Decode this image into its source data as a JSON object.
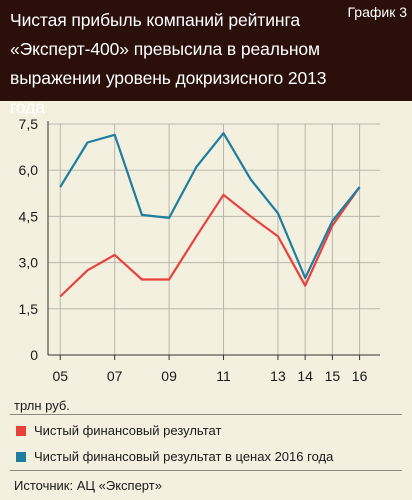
{
  "header": {
    "title": "Чистая прибыль компаний рейтинга «Эксперт-400» превысила в реальном выражении уровень докризисного 2013 года",
    "tag": "График 3"
  },
  "chart_data": {
    "type": "line",
    "title": "Чистая прибыль компаний рейтинга «Эксперт-400» превысила в реальном выражении уровень докризисного 2013 года",
    "x": [
      2005,
      2006,
      2007,
      2008,
      2009,
      2010,
      2011,
      2012,
      2013,
      2014,
      2015,
      2016
    ],
    "x_tick_labels": [
      "05",
      "07",
      "09",
      "11",
      "13",
      "14",
      "15",
      "16"
    ],
    "x_tick_positions": [
      2005,
      2007,
      2009,
      2011,
      2013,
      2014,
      2015,
      2016
    ],
    "ylim": [
      0,
      7.5
    ],
    "y_ticks": [
      "0",
      "1,5",
      "3,0",
      "4,5",
      "6,0",
      "7,5"
    ],
    "y_tick_values": [
      0,
      1.5,
      3.0,
      4.5,
      6.0,
      7.5
    ],
    "ylabel": "трлн руб.",
    "grid": true,
    "series": [
      {
        "name": "Чистый финансовый результат",
        "color": "#e8413c",
        "values": [
          1.9,
          2.75,
          3.25,
          2.45,
          2.45,
          3.85,
          5.2,
          4.5,
          3.85,
          2.25,
          4.2,
          5.45
        ]
      },
      {
        "name": "Чистый финансовый результат в ценах 2016 года",
        "color": "#1e7ea0",
        "values": [
          5.45,
          6.9,
          7.15,
          4.55,
          4.45,
          6.1,
          7.2,
          5.7,
          4.6,
          2.5,
          4.35,
          5.45
        ]
      }
    ]
  },
  "unit_label": "трлн руб.",
  "source": "Источник: АЦ «Эксперт»",
  "colors": {
    "header_bg": "#2b0f0a",
    "background": "#f3f0df",
    "grid": "#b9b7ad"
  }
}
